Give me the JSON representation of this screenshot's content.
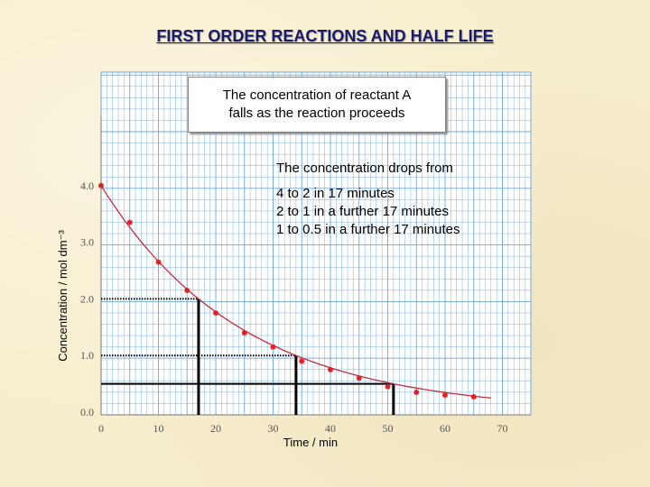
{
  "title": "FIRST ORDER REACTIONS AND HALF LIFE",
  "callout": {
    "line1": "The concentration of reactant A",
    "line2": "falls as the reaction proceeds"
  },
  "info": {
    "lead": "The concentration drops from",
    "lines": [
      "4 to 2 in 17 minutes",
      "2 to 1 in a further 17 minutes",
      "1 to 0.5 in a further  17 minutes"
    ]
  },
  "chart_data": {
    "type": "scatter",
    "xlabel": "Time / min",
    "ylabel": "Concentration / mol dm⁻³",
    "xlim": [
      0,
      75
    ],
    "ylim": [
      0,
      6
    ],
    "x_ticks": [
      0,
      10,
      20,
      30,
      40,
      50,
      60,
      70
    ],
    "x_tick_labels": [
      "0",
      "10",
      "20",
      "30",
      "40",
      "50",
      "60",
      "70"
    ],
    "y_ticks": [
      0,
      1,
      2,
      3,
      4
    ],
    "y_tick_labels": [
      "0.0",
      "1.0",
      "2.0",
      "3.0",
      "4.0"
    ],
    "grid": true,
    "fitted_curve": true,
    "points": [
      {
        "x": 0,
        "y": 4.0
      },
      {
        "x": 5,
        "y": 3.35
      },
      {
        "x": 10,
        "y": 2.65
      },
      {
        "x": 15,
        "y": 2.15
      },
      {
        "x": 20,
        "y": 1.75
      },
      {
        "x": 25,
        "y": 1.4
      },
      {
        "x": 30,
        "y": 1.15
      },
      {
        "x": 35,
        "y": 0.9
      },
      {
        "x": 40,
        "y": 0.75
      },
      {
        "x": 45,
        "y": 0.6
      },
      {
        "x": 50,
        "y": 0.45
      },
      {
        "x": 55,
        "y": 0.35
      },
      {
        "x": 60,
        "y": 0.3
      },
      {
        "x": 65,
        "y": 0.27
      }
    ],
    "half_life_markers": [
      {
        "t": 17,
        "c": 2.0
      },
      {
        "t": 34,
        "c": 1.0
      },
      {
        "t": 51,
        "c": 0.5
      }
    ],
    "colors": {
      "grid": "#6fa8dc",
      "points": "#e02020",
      "curve": "#c03040",
      "axis_text": "#555555"
    }
  }
}
